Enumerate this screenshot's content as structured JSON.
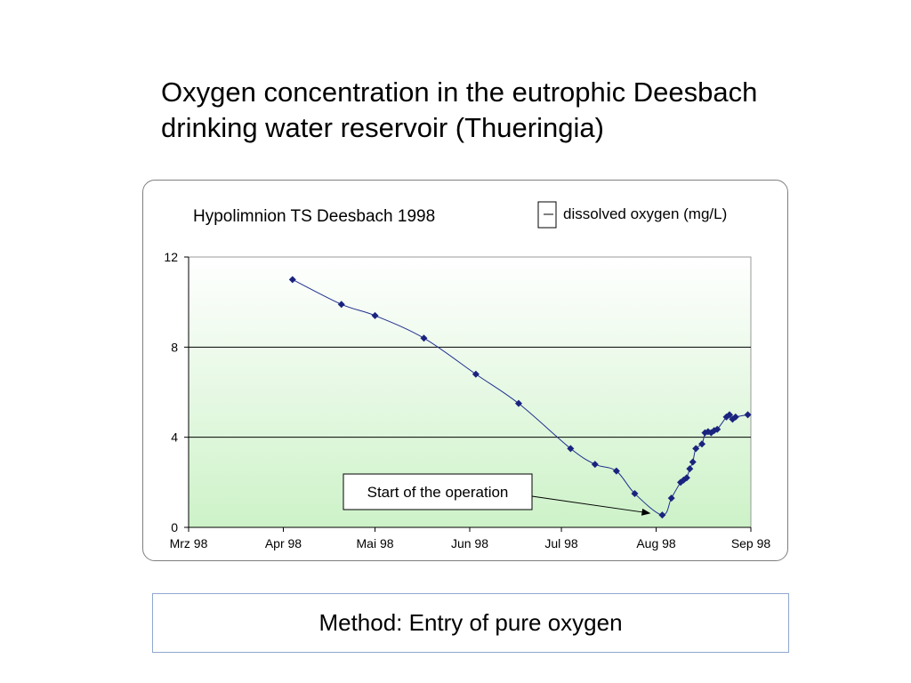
{
  "slide": {
    "title": "Oxygen concentration in the eutrophic Deesbach\ndrinking water reservoir (Thueringia)",
    "method": "Method: Entry of pure oxygen"
  },
  "colors": {
    "series": "#1f2f8f",
    "marker": "#1a237e",
    "plot_gradient_top": "#ffffff",
    "plot_gradient_bottom": "#cdf2c8",
    "gridline": "#000000"
  },
  "chart_data": {
    "type": "line",
    "title": "Hypolimnion TS Deesbach 1998",
    "legend": {
      "position": "top-right",
      "entries": [
        "dissolved oxygen (mg/L)"
      ]
    },
    "xlabel": "",
    "ylabel": "",
    "xlim": [
      "1998-03-01",
      "1998-09-01"
    ],
    "ylim": [
      0,
      12
    ],
    "grid": true,
    "x_ticks": [
      {
        "date": "1998-03-01",
        "label": "Mrz 98"
      },
      {
        "date": "1998-04-01",
        "label": "Apr 98"
      },
      {
        "date": "1998-05-01",
        "label": "Mai 98"
      },
      {
        "date": "1998-06-01",
        "label": "Jun 98"
      },
      {
        "date": "1998-07-01",
        "label": "Jul 98"
      },
      {
        "date": "1998-08-01",
        "label": "Aug 98"
      },
      {
        "date": "1998-09-01",
        "label": "Sep 98"
      }
    ],
    "y_ticks": [
      {
        "value": 0,
        "label": "0"
      },
      {
        "value": 4,
        "label": "4"
      },
      {
        "value": 8,
        "label": "8"
      },
      {
        "value": 12,
        "label": "12"
      }
    ],
    "series": [
      {
        "name": "dissolved oxygen (mg/L)",
        "points": [
          {
            "x": "1998-04-04",
            "y": 11.0
          },
          {
            "x": "1998-04-20",
            "y": 9.9
          },
          {
            "x": "1998-05-01",
            "y": 9.4
          },
          {
            "x": "1998-05-17",
            "y": 8.4
          },
          {
            "x": "1998-06-03",
            "y": 6.8
          },
          {
            "x": "1998-06-17",
            "y": 5.5
          },
          {
            "x": "1998-07-04",
            "y": 3.5
          },
          {
            "x": "1998-07-12",
            "y": 2.8
          },
          {
            "x": "1998-07-19",
            "y": 2.5
          },
          {
            "x": "1998-07-25",
            "y": 1.5
          },
          {
            "x": "1998-08-03",
            "y": 0.55
          },
          {
            "x": "1998-08-06",
            "y": 1.3
          },
          {
            "x": "1998-08-09",
            "y": 2.0
          },
          {
            "x": "1998-08-10",
            "y": 2.1
          },
          {
            "x": "1998-08-11",
            "y": 2.2
          },
          {
            "x": "1998-08-12",
            "y": 2.6
          },
          {
            "x": "1998-08-13",
            "y": 2.9
          },
          {
            "x": "1998-08-14",
            "y": 3.5
          },
          {
            "x": "1998-08-16",
            "y": 3.7
          },
          {
            "x": "1998-08-17",
            "y": 4.2
          },
          {
            "x": "1998-08-18",
            "y": 4.25
          },
          {
            "x": "1998-08-19",
            "y": 4.2
          },
          {
            "x": "1998-08-20",
            "y": 4.3
          },
          {
            "x": "1998-08-21",
            "y": 4.35
          },
          {
            "x": "1998-08-24",
            "y": 4.9
          },
          {
            "x": "1998-08-25",
            "y": 5.0
          },
          {
            "x": "1998-08-26",
            "y": 4.8
          },
          {
            "x": "1998-08-27",
            "y": 4.9
          },
          {
            "x": "1998-08-31",
            "y": 5.0
          }
        ]
      }
    ],
    "annotations": [
      {
        "text": "Start of the operation",
        "x": "1998-08-03",
        "y": 0.55
      }
    ]
  }
}
